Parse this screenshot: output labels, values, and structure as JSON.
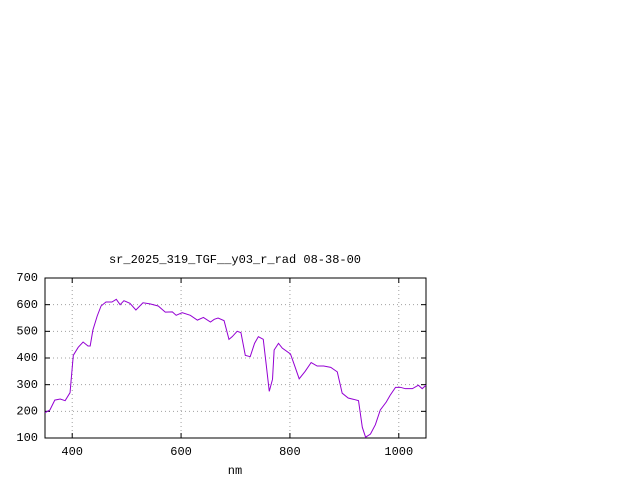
{
  "chart_data": {
    "type": "line",
    "title": "sr_2025_319_TGF__y03_r_rad 08-38-00",
    "x_label": "nm",
    "xlim": [
      350,
      1050
    ],
    "xticks": [
      400,
      600,
      800,
      1000
    ],
    "ylim": [
      100,
      700
    ],
    "yticks": [
      100,
      200,
      300,
      400,
      500,
      600,
      700
    ],
    "grid": true,
    "series": [
      {
        "color": "#9400d3",
        "x": [
          350,
          359,
          368,
          378,
          387,
          396,
          402,
          411,
          420,
          429,
          433,
          438,
          446,
          453,
          462,
          473,
          481,
          488,
          495,
          506,
          517,
          530,
          543,
          558,
          571,
          584,
          591,
          602,
          617,
          630,
          641,
          654,
          661,
          668,
          679,
          688,
          694,
          703,
          710,
          718,
          727,
          735,
          742,
          751,
          757,
          762,
          768,
          771,
          779,
          786,
          801,
          808,
          817,
          828,
          839,
          850,
          862,
          875,
          887,
          896,
          907,
          917,
          926,
          933,
          939,
          948,
          957,
          966,
          977,
          984,
          994,
          1003,
          1012,
          1025,
          1036,
          1043,
          1050
        ],
        "values": [
          195,
          205,
          242,
          246,
          240,
          270,
          410,
          440,
          460,
          445,
          445,
          505,
          558,
          595,
          610,
          610,
          620,
          600,
          615,
          605,
          580,
          607,
          603,
          595,
          572,
          573,
          560,
          570,
          560,
          542,
          552,
          535,
          545,
          550,
          540,
          470,
          480,
          500,
          495,
          410,
          405,
          455,
          480,
          470,
          365,
          275,
          320,
          430,
          455,
          437,
          415,
          375,
          322,
          350,
          383,
          370,
          370,
          365,
          348,
          268,
          250,
          245,
          240,
          140,
          103,
          115,
          150,
          205,
          235,
          260,
          290,
          290,
          285,
          285,
          298,
          285,
          298
        ]
      }
    ]
  }
}
